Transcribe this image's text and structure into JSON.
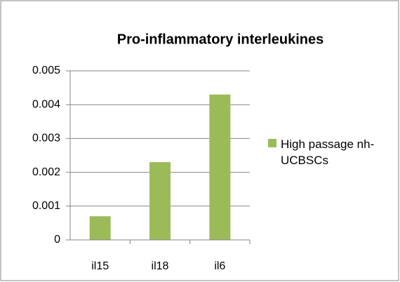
{
  "chart_data": {
    "type": "bar",
    "title": "Pro-inflammatory interleukines",
    "categories": [
      "il15",
      "il18",
      "il6"
    ],
    "series": [
      {
        "name": "High passage nh-UCBSCs",
        "color": "#9bbb59",
        "values": [
          0.0007,
          0.0023,
          0.0043
        ]
      }
    ],
    "ylim": [
      0,
      0.005
    ],
    "yticks": [
      0,
      0.001,
      0.002,
      0.003,
      0.004,
      0.005
    ],
    "grid": true,
    "legend": "right"
  }
}
